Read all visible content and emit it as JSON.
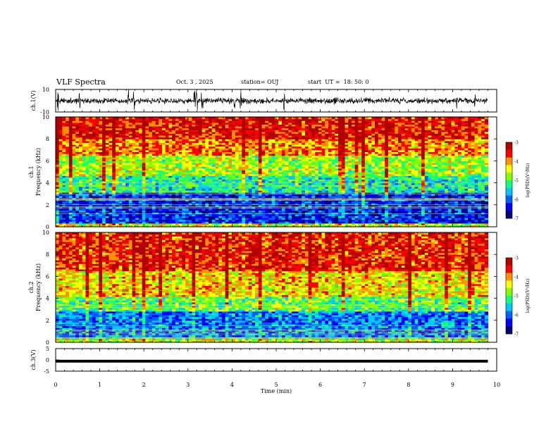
{
  "header": {
    "title": "VLF Spectra",
    "date": "Oct. 3 , 2025",
    "station": "station= OUJ",
    "start": "start  UT =  18: 50: 0"
  },
  "chart_data": [
    {
      "type": "line",
      "name": "ch1-waveform",
      "ylabel": "ch.1(V)",
      "ylim": [
        -10,
        10
      ],
      "yticks": [
        "10",
        "-10"
      ],
      "xlim": [
        0,
        10
      ],
      "description_values": {
        "baseline_v": 0,
        "typical_amplitude_v": 2.5,
        "burst_times_min": [
          0.05,
          0.55,
          1.65,
          1.78,
          3.15,
          3.2,
          3.32,
          4.05,
          4.2,
          5.18,
          6.33,
          9.1,
          9.5
        ]
      }
    },
    {
      "type": "heatmap",
      "name": "ch1-spectrogram",
      "ylabel": "ch.1\nFrequency (kHz)",
      "ylabel_line1": "ch.1",
      "ylabel_line2": "Frequency (kHz)",
      "xlim": [
        0,
        10
      ],
      "ylim": [
        0,
        10
      ],
      "yticks": [
        "0",
        "2",
        "4",
        "6",
        "8",
        "10"
      ],
      "data_end_min": 9.8,
      "colorbar": {
        "label": "log(PSD)(V²/Hz)",
        "range": [
          -7,
          -3
        ],
        "ticks": [
          "-3",
          "-4",
          "-5",
          "-6",
          "-7"
        ]
      },
      "bands": [
        {
          "f_khz": [
            0.0,
            0.4
          ],
          "log_psd": -4.5
        },
        {
          "f_khz": [
            0.4,
            3.2
          ],
          "log_psd": -6.3
        },
        {
          "f_khz": [
            3.2,
            4.6
          ],
          "log_psd": -5.3
        },
        {
          "f_khz": [
            4.6,
            6.5
          ],
          "log_psd": -4.7
        },
        {
          "f_khz": [
            6.5,
            8.0
          ],
          "log_psd": -4.0
        },
        {
          "f_khz": [
            8.0,
            10.0
          ],
          "log_psd": -3.5
        }
      ]
    },
    {
      "type": "heatmap",
      "name": "ch2-spectrogram",
      "ylabel": "ch.2\nFrequency (kHz)",
      "ylabel_line1": "ch.2",
      "ylabel_line2": "Frequency (kHz)",
      "xlim": [
        0,
        10
      ],
      "ylim": [
        0,
        10
      ],
      "yticks": [
        "0",
        "2",
        "4",
        "6",
        "8",
        "10"
      ],
      "data_end_min": 9.8,
      "colorbar": {
        "label": "log(PSD)(V²/Hz)",
        "range": [
          -7,
          -3
        ],
        "ticks": [
          "-3",
          "-4",
          "-5",
          "-6",
          "-7"
        ]
      },
      "bands": [
        {
          "f_khz": [
            0.0,
            0.4
          ],
          "log_psd": -4.6
        },
        {
          "f_khz": [
            0.4,
            2.8
          ],
          "log_psd": -5.9
        },
        {
          "f_khz": [
            2.8,
            4.2
          ],
          "log_psd": -5.0
        },
        {
          "f_khz": [
            4.2,
            6.5
          ],
          "log_psd": -4.3
        },
        {
          "f_khz": [
            6.5,
            10.0
          ],
          "log_psd": -3.6
        }
      ]
    },
    {
      "type": "line",
      "name": "ch3-waveform",
      "ylabel": "ch.3(V)",
      "ylim": [
        -5,
        5
      ],
      "yticks": [
        "5",
        "0",
        "-5"
      ],
      "xlim": [
        0,
        10
      ],
      "values_level_v": -0.6,
      "xlabel": "Time (min)",
      "xticks": [
        "0",
        "1",
        "2",
        "3",
        "4",
        "5",
        "6",
        "7",
        "8",
        "9",
        "10"
      ]
    }
  ],
  "colors": {
    "colormap": [
      "#00007a",
      "#0000ff",
      "#0060ff",
      "#00c8ff",
      "#10ff80",
      "#80ff00",
      "#ffff00",
      "#ff9000",
      "#ff0000",
      "#b00000"
    ]
  }
}
